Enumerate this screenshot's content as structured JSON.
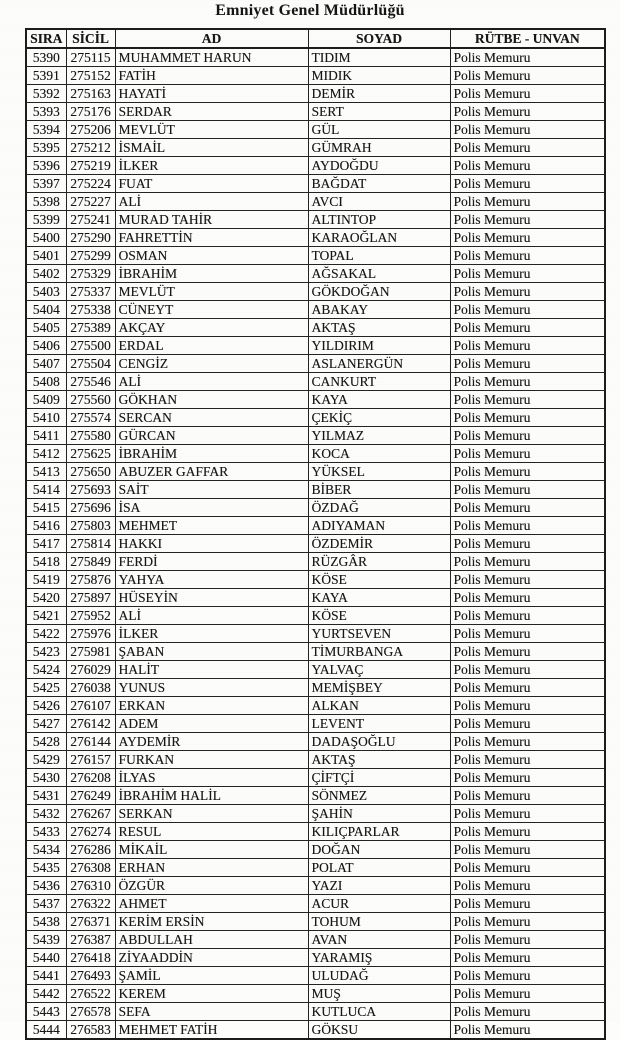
{
  "document": {
    "title": "Emniyet Genel Müdürlüğü"
  },
  "table": {
    "columns": [
      "SIRA",
      "SİCİL",
      "AD",
      "SOYAD",
      "RÜTBE - UNVAN"
    ],
    "rows": [
      [
        "5390",
        "275115",
        "MUHAMMET HARUN",
        "TIDIM",
        "Polis Memuru"
      ],
      [
        "5391",
        "275152",
        "FATİH",
        "MIDIK",
        "Polis Memuru"
      ],
      [
        "5392",
        "275163",
        "HAYATİ",
        "DEMİR",
        "Polis Memuru"
      ],
      [
        "5393",
        "275176",
        "SERDAR",
        "SERT",
        "Polis Memuru"
      ],
      [
        "5394",
        "275206",
        "MEVLÜT",
        "GÜL",
        "Polis Memuru"
      ],
      [
        "5395",
        "275212",
        "İSMAİL",
        "GÜMRAH",
        "Polis Memuru"
      ],
      [
        "5396",
        "275219",
        "İLKER",
        "AYDOĞDU",
        "Polis Memuru"
      ],
      [
        "5397",
        "275224",
        "FUAT",
        "BAĞDAT",
        "Polis Memuru"
      ],
      [
        "5398",
        "275227",
        "ALİ",
        "AVCI",
        "Polis Memuru"
      ],
      [
        "5399",
        "275241",
        "MURAD TAHİR",
        "ALTINTOP",
        "Polis Memuru"
      ],
      [
        "5400",
        "275290",
        "FAHRETTİN",
        "KARAOĞLAN",
        "Polis Memuru"
      ],
      [
        "5401",
        "275299",
        "OSMAN",
        "TOPAL",
        "Polis Memuru"
      ],
      [
        "5402",
        "275329",
        "İBRAHİM",
        "AĞSAKAL",
        "Polis Memuru"
      ],
      [
        "5403",
        "275337",
        "MEVLÜT",
        "GÖKDOĞAN",
        "Polis Memuru"
      ],
      [
        "5404",
        "275338",
        "CÜNEYT",
        "ABAKAY",
        "Polis Memuru"
      ],
      [
        "5405",
        "275389",
        "AKÇAY",
        "AKTAŞ",
        "Polis Memuru"
      ],
      [
        "5406",
        "275500",
        "ERDAL",
        "YILDIRIM",
        "Polis Memuru"
      ],
      [
        "5407",
        "275504",
        "CENGİZ",
        "ASLANERGÜN",
        "Polis Memuru"
      ],
      [
        "5408",
        "275546",
        "ALİ",
        "CANKURT",
        "Polis Memuru"
      ],
      [
        "5409",
        "275560",
        "GÖKHAN",
        "KAYA",
        "Polis Memuru"
      ],
      [
        "5410",
        "275574",
        "SERCAN",
        "ÇEKİÇ",
        "Polis Memuru"
      ],
      [
        "5411",
        "275580",
        "GÜRCAN",
        "YILMAZ",
        "Polis Memuru"
      ],
      [
        "5412",
        "275625",
        "İBRAHİM",
        "KOCA",
        "Polis Memuru"
      ],
      [
        "5413",
        "275650",
        "ABUZER GAFFAR",
        "YÜKSEL",
        "Polis Memuru"
      ],
      [
        "5414",
        "275693",
        "SAİT",
        "BİBER",
        "Polis Memuru"
      ],
      [
        "5415",
        "275696",
        "İSA",
        "ÖZDAĞ",
        "Polis Memuru"
      ],
      [
        "5416",
        "275803",
        "MEHMET",
        "ADIYAMAN",
        "Polis Memuru"
      ],
      [
        "5417",
        "275814",
        "HAKKI",
        "ÖZDEMİR",
        "Polis Memuru"
      ],
      [
        "5418",
        "275849",
        "FERDİ",
        "RÜZGÂR",
        "Polis Memuru"
      ],
      [
        "5419",
        "275876",
        "YAHYA",
        "KÖSE",
        "Polis Memuru"
      ],
      [
        "5420",
        "275897",
        "HÜSEYİN",
        "KAYA",
        "Polis Memuru"
      ],
      [
        "5421",
        "275952",
        "ALİ",
        "KÖSE",
        "Polis Memuru"
      ],
      [
        "5422",
        "275976",
        "İLKER",
        "YURTSEVEN",
        "Polis Memuru"
      ],
      [
        "5423",
        "275981",
        "ŞABAN",
        "TİMURBANGA",
        "Polis Memuru"
      ],
      [
        "5424",
        "276029",
        "HALİT",
        "YALVAÇ",
        "Polis Memuru"
      ],
      [
        "5425",
        "276038",
        "YUNUS",
        "MEMİŞBEY",
        "Polis Memuru"
      ],
      [
        "5426",
        "276107",
        "ERKAN",
        "ALKAN",
        "Polis Memuru"
      ],
      [
        "5427",
        "276142",
        "ADEM",
        "LEVENT",
        "Polis Memuru"
      ],
      [
        "5428",
        "276144",
        "AYDEMİR",
        "DADAŞOĞLU",
        "Polis Memuru"
      ],
      [
        "5429",
        "276157",
        "FURKAN",
        "AKTAŞ",
        "Polis Memuru"
      ],
      [
        "5430",
        "276208",
        "İLYAS",
        "ÇİFTÇİ",
        "Polis Memuru"
      ],
      [
        "5431",
        "276249",
        "İBRAHİM HALİL",
        "SÖNMEZ",
        "Polis Memuru"
      ],
      [
        "5432",
        "276267",
        "SERKAN",
        "ŞAHİN",
        "Polis Memuru"
      ],
      [
        "5433",
        "276274",
        "RESUL",
        "KILIÇPARLAR",
        "Polis Memuru"
      ],
      [
        "5434",
        "276286",
        "MİKAİL",
        "DOĞAN",
        "Polis Memuru"
      ],
      [
        "5435",
        "276308",
        "ERHAN",
        "POLAT",
        "Polis Memuru"
      ],
      [
        "5436",
        "276310",
        "ÖZGÜR",
        "YAZI",
        "Polis Memuru"
      ],
      [
        "5437",
        "276322",
        "AHMET",
        "ACUR",
        "Polis Memuru"
      ],
      [
        "5438",
        "276371",
        "KERİM ERSİN",
        "TOHUM",
        "Polis Memuru"
      ],
      [
        "5439",
        "276387",
        "ABDULLAH",
        "AVAN",
        "Polis Memuru"
      ],
      [
        "5440",
        "276418",
        "ZİYAADDİN",
        "YARAMIŞ",
        "Polis Memuru"
      ],
      [
        "5441",
        "276493",
        "ŞAMİL",
        "ULUDAĞ",
        "Polis Memuru"
      ],
      [
        "5442",
        "276522",
        "KEREM",
        "MUŞ",
        "Polis Memuru"
      ],
      [
        "5443",
        "276578",
        "SEFA",
        "KUTLUCA",
        "Polis Memuru"
      ],
      [
        "5444",
        "276583",
        "MEHMET FATİH",
        "GÖKSU",
        "Polis Memuru"
      ]
    ]
  }
}
